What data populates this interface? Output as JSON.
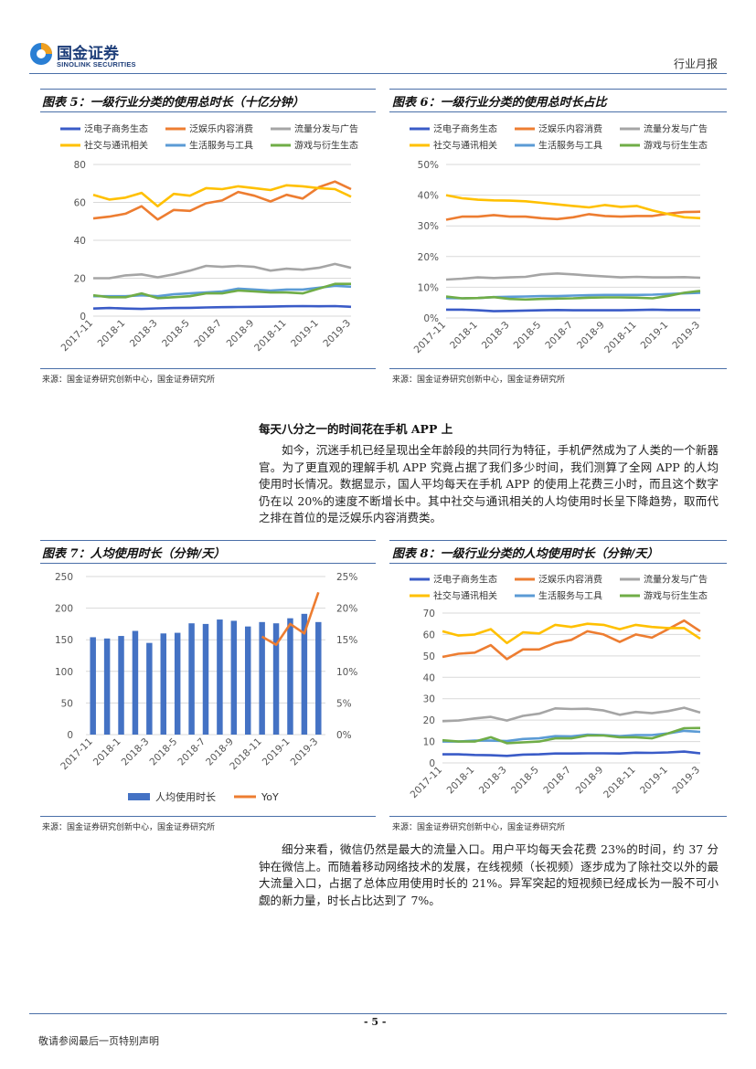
{
  "header": {
    "logo_cn": "国金证券",
    "logo_en": "SINOLINK SECURITIES",
    "doc_type": "行业月报"
  },
  "fig5": {
    "title": "图表 5：一级行业分类的使用总时长（十亿分钟）",
    "source": "来源：国金证券研究创新中心，国金证券研究所",
    "chart_data": {
      "type": "line",
      "x": [
        "2017-11",
        "2017-12",
        "2018-1",
        "2018-2",
        "2018-3",
        "2018-4",
        "2018-5",
        "2018-6",
        "2018-7",
        "2018-8",
        "2018-9",
        "2018-10",
        "2018-11",
        "2018-12",
        "2019-1",
        "2019-2",
        "2019-3"
      ],
      "x_ticks": [
        "2017-11",
        "2018-1",
        "2018-3",
        "2018-5",
        "2018-7",
        "2018-9",
        "2018-11",
        "2019-1",
        "2019-3"
      ],
      "ylim": [
        0,
        80
      ],
      "y_ticks": [
        "0",
        "20",
        "40",
        "60",
        "80"
      ],
      "y_tick_values": [
        0,
        20,
        40,
        60,
        80
      ],
      "series": [
        {
          "name": "泛电子商务生态",
          "color": "#3a5bc7",
          "values": [
            4,
            4.3,
            4,
            3.8,
            4.1,
            4.3,
            4.4,
            4.6,
            4.7,
            4.8,
            4.9,
            5,
            5.2,
            5.3,
            5.2,
            5.3,
            4.9
          ]
        },
        {
          "name": "泛娱乐内容消费",
          "color": "#ed7d31",
          "values": [
            51.5,
            52.5,
            54,
            58,
            51,
            56,
            55.5,
            59.5,
            61,
            65.5,
            63.5,
            60.5,
            64,
            62,
            68,
            71,
            67
          ]
        },
        {
          "name": "流量分发与广告",
          "color": "#a5a5a5",
          "values": [
            20,
            20,
            21.5,
            22,
            20.5,
            22,
            24,
            26.5,
            26,
            26.5,
            26,
            24,
            25,
            24.5,
            25.5,
            27.5,
            25.5
          ]
        },
        {
          "name": "社交与通讯相关",
          "color": "#ffc000",
          "values": [
            64,
            61.5,
            62.5,
            65,
            58,
            64.5,
            63.5,
            67.5,
            67,
            68.5,
            67.5,
            66.5,
            69,
            68.5,
            67.5,
            67,
            63
          ]
        },
        {
          "name": "生活服务与工具",
          "color": "#5b9bd5",
          "values": [
            10.5,
            10.5,
            10.5,
            11,
            10.5,
            11.5,
            12,
            12.5,
            13,
            14.5,
            14,
            13.5,
            14,
            14,
            15,
            16,
            15.5
          ]
        },
        {
          "name": "游戏与衍生生态",
          "color": "#70ad47",
          "values": [
            11,
            10,
            10,
            12,
            9.5,
            10,
            10.5,
            12,
            12,
            13.5,
            13,
            12.5,
            12.5,
            12,
            14.5,
            17,
            17
          ]
        }
      ]
    }
  },
  "fig6": {
    "title": "图表 6：一级行业分类的使用总时长占比",
    "source": "来源：国金证券研究创新中心，国金证券研究所",
    "chart_data": {
      "type": "line",
      "x": [
        "2017-11",
        "2017-12",
        "2018-1",
        "2018-2",
        "2018-3",
        "2018-4",
        "2018-5",
        "2018-6",
        "2018-7",
        "2018-8",
        "2018-9",
        "2018-10",
        "2018-11",
        "2018-12",
        "2019-1",
        "2019-2",
        "2019-3"
      ],
      "x_ticks": [
        "2017-11",
        "2018-1",
        "2018-3",
        "2018-5",
        "2018-7",
        "2018-9",
        "2018-11",
        "2019-1",
        "2019-3"
      ],
      "ylim": [
        0,
        50
      ],
      "y_ticks": [
        "0%",
        "10%",
        "20%",
        "30%",
        "40%",
        "50%"
      ],
      "y_tick_values": [
        0,
        10,
        20,
        30,
        40,
        50
      ],
      "series": [
        {
          "name": "泛电子商务生态",
          "color": "#3a5bc7",
          "values": [
            2.7,
            2.7,
            2.5,
            2.2,
            2.3,
            2.4,
            2.5,
            2.6,
            2.5,
            2.5,
            2.5,
            2.5,
            2.6,
            2.7,
            2.6,
            2.6,
            2.6
          ]
        },
        {
          "name": "泛娱乐内容消费",
          "color": "#ed7d31",
          "values": [
            32,
            33,
            33,
            33.5,
            33,
            33,
            32.5,
            32.2,
            32.8,
            33.8,
            33.2,
            33,
            33.2,
            33.2,
            34,
            34.5,
            34.6
          ]
        },
        {
          "name": "流量分发与广告",
          "color": "#a5a5a5",
          "values": [
            12.5,
            12.8,
            13.2,
            13,
            13.2,
            13.4,
            14.2,
            14.5,
            14.2,
            13.8,
            13.5,
            13.2,
            13.4,
            13.2,
            13.2,
            13.3,
            13.1
          ]
        },
        {
          "name": "社交与通讯相关",
          "color": "#ffc000",
          "values": [
            40,
            39,
            38.5,
            38.3,
            38.2,
            38,
            37.5,
            37,
            36.5,
            36,
            36.8,
            36.2,
            36.5,
            35,
            33.8,
            32.8,
            32.5
          ]
        },
        {
          "name": "生活服务与工具",
          "color": "#5b9bd5",
          "values": [
            6.5,
            6.4,
            6.5,
            6.8,
            6.9,
            7,
            7.1,
            7.1,
            7.3,
            7.4,
            7.5,
            7.5,
            7.5,
            7.6,
            7.8,
            8,
            8.2
          ]
        },
        {
          "name": "游戏与衍生生态",
          "color": "#70ad47",
          "values": [
            7,
            6.4,
            6.5,
            6.8,
            6.2,
            6,
            6.2,
            6.3,
            6.4,
            6.6,
            6.7,
            6.7,
            6.6,
            6.4,
            7.2,
            8.2,
            8.8
          ]
        }
      ]
    }
  },
  "section": {
    "heading": "每天八分之一的时间花在手机 APP 上",
    "para1": "如今，沉迷手机已经呈现出全年龄段的共同行为特征，手机俨然成为了人类的一个新器官。为了更直观的理解手机 APP 究竟占据了我们多少时间，我们测算了全网 APP 的人均使用时长情况。数据显示，国人平均每天在手机 APP 的使用上花费三小时，而且这个数字仍在以 20%的速度不断增长中。其中社交与通讯相关的人均使用时长呈下降趋势，取而代之排在首位的是泛娱乐内容消费类。"
  },
  "fig7": {
    "title": "图表 7：人均使用时长（分钟/天）",
    "source": "来源：国金证券研究创新中心，国金证券研究所",
    "chart_data": {
      "type": "bar",
      "categories": [
        "2017-11",
        "2017-12",
        "2018-1",
        "2018-2",
        "2018-3",
        "2018-4",
        "2018-5",
        "2018-6",
        "2018-7",
        "2018-8",
        "2018-9",
        "2018-10",
        "2018-11",
        "2018-12",
        "2019-1",
        "2019-2",
        "2019-3"
      ],
      "x_ticks": [
        "2017-11",
        "2018-1",
        "2018-3",
        "2018-5",
        "2018-7",
        "2018-9",
        "2018-11",
        "2019-1",
        "2019-3"
      ],
      "series": [
        {
          "name": "人均使用时长",
          "color": "#4472c4",
          "axis": "left",
          "values": [
            154,
            152,
            156,
            164,
            145,
            160,
            161,
            176,
            175,
            182,
            180,
            171,
            178,
            176,
            184,
            191,
            178
          ]
        },
        {
          "name": "YoY",
          "color": "#ed7d31",
          "axis": "right",
          "values": [
            null,
            null,
            null,
            null,
            null,
            null,
            null,
            null,
            null,
            null,
            null,
            null,
            15.5,
            14.2,
            17.5,
            16,
            22.5
          ]
        }
      ],
      "ylim": [
        0,
        250
      ],
      "y_ticks": [
        "0",
        "50",
        "100",
        "150",
        "200",
        "250"
      ],
      "y_tick_values": [
        0,
        50,
        100,
        150,
        200,
        250
      ],
      "y2lim": [
        0,
        25
      ],
      "y2_ticks": [
        "0%",
        "5%",
        "10%",
        "15%",
        "20%",
        "25%"
      ],
      "y2_tick_values": [
        0,
        5,
        10,
        15,
        20,
        25
      ]
    }
  },
  "fig8": {
    "title": "图表 8：一级行业分类的人均使用时长（分钟/天）",
    "source": "来源：国金证券研究创新中心，国金证券研究所",
    "chart_data": {
      "type": "line",
      "x": [
        "2017-11",
        "2017-12",
        "2018-1",
        "2018-2",
        "2018-3",
        "2018-4",
        "2018-5",
        "2018-6",
        "2018-7",
        "2018-8",
        "2018-9",
        "2018-10",
        "2018-11",
        "2018-12",
        "2019-1",
        "2019-2",
        "2019-3"
      ],
      "x_ticks": [
        "2017-11",
        "2018-1",
        "2018-3",
        "2018-5",
        "2018-7",
        "2018-9",
        "2018-11",
        "2019-1",
        "2019-3"
      ],
      "ylim": [
        0,
        70
      ],
      "y_ticks": [
        "0",
        "10",
        "20",
        "30",
        "40",
        "50",
        "60",
        "70"
      ],
      "y_tick_values": [
        0,
        10,
        20,
        30,
        40,
        50,
        60,
        70
      ],
      "series": [
        {
          "name": "泛电子商务生态",
          "color": "#3a5bc7",
          "values": [
            4,
            4,
            3.7,
            3.6,
            3.3,
            3.9,
            4,
            4.4,
            4.4,
            4.5,
            4.5,
            4.4,
            4.8,
            4.7,
            4.9,
            5.3,
            4.5
          ]
        },
        {
          "name": "泛娱乐内容消费",
          "color": "#ed7d31",
          "values": [
            49.5,
            51,
            51.5,
            55,
            48.5,
            53,
            53,
            56,
            57.5,
            61.5,
            60,
            56.5,
            60,
            58.5,
            62.5,
            66.5,
            61.5
          ]
        },
        {
          "name": "流量分发与广告",
          "color": "#a5a5a5",
          "values": [
            19.5,
            19.8,
            20.8,
            21.5,
            19.8,
            22,
            23,
            25.5,
            25.2,
            25.3,
            24.5,
            22.5,
            23.8,
            23.2,
            24.2,
            25.8,
            23.5
          ]
        },
        {
          "name": "社交与通讯相关",
          "color": "#ffc000",
          "values": [
            61.5,
            59.5,
            60,
            62.5,
            56,
            61,
            60.5,
            64.5,
            63.5,
            65,
            64.5,
            62.5,
            64.5,
            63.5,
            63,
            63,
            58
          ]
        },
        {
          "name": "生活服务与工具",
          "color": "#5b9bd5",
          "values": [
            10,
            10,
            10.4,
            10.4,
            10.2,
            11.2,
            11.5,
            12.5,
            12.4,
            13.2,
            13,
            12.5,
            13,
            13,
            13.8,
            15,
            14.5
          ]
        },
        {
          "name": "游戏与衍生生态",
          "color": "#70ad47",
          "values": [
            10.6,
            10,
            10,
            12,
            9.2,
            9.6,
            10,
            11.5,
            11.5,
            12.8,
            12.8,
            12,
            12,
            11.5,
            13.8,
            16.2,
            16.3
          ]
        }
      ]
    }
  },
  "section2": {
    "para2": "细分来看，微信仍然是最大的流量入口。用户平均每天会花费 23%的时间，约 37 分钟在微信上。而随着移动网络技术的发展，在线视频（长视频）逐步成为了除社交以外的最大流量入口，占据了总体应用使用时长的 21%。异军突起的短视频已经成长为一股不可小觑的新力量，时长占比达到了 7%。"
  },
  "footer": {
    "page": "- 5 -",
    "note": "敬请参阅最后一页特别声明"
  }
}
